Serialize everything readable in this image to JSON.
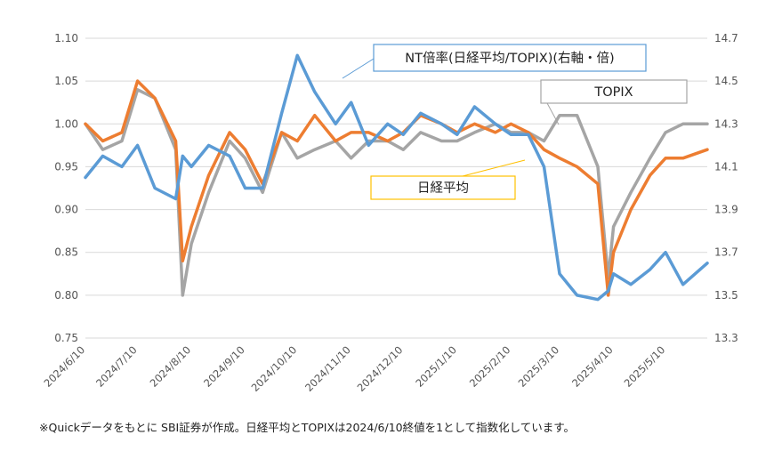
{
  "chart_data": {
    "type": "line",
    "title": "",
    "xlabel": "",
    "ylabel": "",
    "ylim_left": [
      0.75,
      1.1
    ],
    "yticks_left": [
      "1.10",
      "1.05",
      "1.00",
      "0.95",
      "0.90",
      "0.85",
      "0.80",
      "0.75"
    ],
    "ylim_right": [
      13.3,
      14.7
    ],
    "yticks_right": [
      "14.7",
      "14.5",
      "14.3",
      "14.1",
      "13.9",
      "13.7",
      "13.5",
      "13.3"
    ],
    "x_tick_labels": [
      "2024/6/10",
      "2024/7/10",
      "2024/8/10",
      "2024/9/10",
      "2024/10/10",
      "2024/11/10",
      "2024/12/10",
      "2025/1/10",
      "2025/2/10",
      "2025/3/10",
      "2025/4/10",
      "2025/5/10"
    ],
    "x": [
      "2024-06-10",
      "2024-06-20",
      "2024-07-01",
      "2024-07-10",
      "2024-07-20",
      "2024-08-01",
      "2024-08-05",
      "2024-08-10",
      "2024-08-20",
      "2024-09-01",
      "2024-09-10",
      "2024-09-20",
      "2024-10-01",
      "2024-10-10",
      "2024-10-20",
      "2024-11-01",
      "2024-11-10",
      "2024-11-20",
      "2024-12-01",
      "2024-12-10",
      "2024-12-20",
      "2025-01-01",
      "2025-01-10",
      "2025-01-20",
      "2025-02-01",
      "2025-02-10",
      "2025-02-20",
      "2025-03-01",
      "2025-03-10",
      "2025-03-20",
      "2025-04-01",
      "2025-04-07",
      "2025-04-10",
      "2025-04-20",
      "2025-05-01",
      "2025-05-10",
      "2025-05-20",
      "2025-06-03"
    ],
    "series": [
      {
        "name": "日経平均",
        "axis": "left",
        "color": "#ed7d31",
        "values": [
          1.0,
          0.98,
          0.99,
          1.05,
          1.03,
          0.98,
          0.84,
          0.88,
          0.94,
          0.99,
          0.97,
          0.93,
          0.99,
          0.98,
          1.01,
          0.98,
          0.99,
          0.99,
          0.98,
          0.99,
          1.01,
          1.0,
          0.99,
          1.0,
          0.99,
          1.0,
          0.99,
          0.97,
          0.96,
          0.95,
          0.93,
          0.8,
          0.85,
          0.9,
          0.94,
          0.96,
          0.96,
          0.97
        ]
      },
      {
        "name": "TOPIX",
        "axis": "left",
        "color": "#a5a5a5",
        "values": [
          1.0,
          0.97,
          0.98,
          1.04,
          1.03,
          0.97,
          0.8,
          0.86,
          0.92,
          0.98,
          0.96,
          0.92,
          0.99,
          0.96,
          0.97,
          0.98,
          0.96,
          0.98,
          0.98,
          0.97,
          0.99,
          0.98,
          0.98,
          0.99,
          1.0,
          0.99,
          0.99,
          0.98,
          1.01,
          1.01,
          0.95,
          0.82,
          0.88,
          0.92,
          0.96,
          0.99,
          1.0,
          1.0
        ]
      },
      {
        "name": "NT倍率(日経平均/TOPIX)(右軸・倍)",
        "axis": "right",
        "color": "#5b9bd5",
        "values": [
          14.05,
          14.15,
          14.1,
          14.2,
          14.0,
          13.95,
          14.15,
          14.1,
          14.2,
          14.15,
          14.0,
          14.0,
          14.35,
          14.62,
          14.45,
          14.3,
          14.4,
          14.2,
          14.3,
          14.25,
          14.35,
          14.3,
          14.25,
          14.38,
          14.3,
          14.25,
          14.25,
          14.1,
          13.6,
          13.5,
          13.48,
          13.52,
          13.6,
          13.55,
          13.62,
          13.7,
          13.55,
          13.65
        ]
      }
    ],
    "annotations": [
      {
        "text": "NT倍率(日経平均/TOPIX)(右軸・倍)",
        "color": "#5b9bd5"
      },
      {
        "text": "TOPIX",
        "color": "#a5a5a5"
      },
      {
        "text": "日経平均",
        "color": "#ffc000"
      }
    ]
  },
  "footnote": "※Quickデータをもとに SBI証券が作成。日経平均とTOPIXは2024/6/10終値を1として指数化しています。"
}
